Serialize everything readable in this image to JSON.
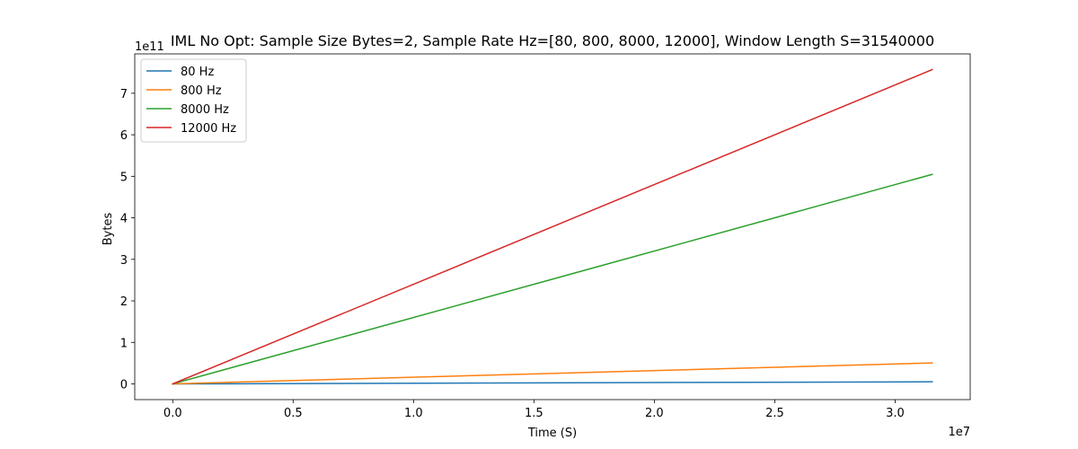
{
  "chart_data": {
    "type": "line",
    "title": "IML No Opt: Sample Size Bytes=2, Sample Rate Hz=[80, 800, 8000, 12000], Window Length S=31540000",
    "xlabel": "Time (S)",
    "ylabel": "Bytes",
    "x_offset_text": "1e7",
    "y_offset_text": "1e11",
    "xlim": [
      -1577000,
      33117000
    ],
    "ylim": [
      -37850000000,
      794850000000
    ],
    "x_ticks": [
      0,
      5000000,
      10000000,
      15000000,
      20000000,
      25000000,
      30000000
    ],
    "x_tick_labels": [
      "0.0",
      "0.5",
      "1.0",
      "1.5",
      "2.0",
      "2.5",
      "3.0"
    ],
    "y_ticks": [
      0,
      100000000000,
      200000000000,
      300000000000,
      400000000000,
      500000000000,
      600000000000,
      700000000000
    ],
    "y_tick_labels": [
      "0",
      "1",
      "2",
      "3",
      "4",
      "5",
      "6",
      "7"
    ],
    "grid": false,
    "legend_position": "top-left",
    "x": [
      0,
      31540000
    ],
    "series": [
      {
        "name": "80 Hz",
        "color": "#1f77b4",
        "values": [
          0,
          5046400000
        ]
      },
      {
        "name": "800 Hz",
        "color": "#ff7f0e",
        "values": [
          0,
          50464000000
        ]
      },
      {
        "name": "8000 Hz",
        "color": "#2ca02c",
        "values": [
          0,
          504640000000
        ]
      },
      {
        "name": "12000 Hz",
        "color": "#d62728",
        "values": [
          0,
          756960000000
        ]
      }
    ]
  }
}
